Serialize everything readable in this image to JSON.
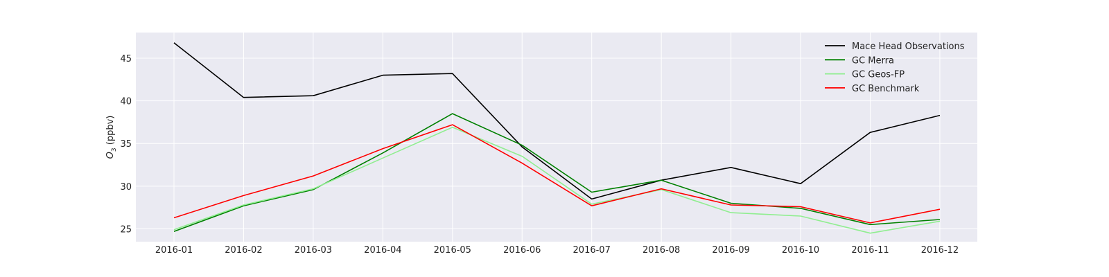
{
  "chart_data": {
    "type": "line",
    "title": "",
    "xlabel": "",
    "ylabel": {
      "symbol": "O",
      "subscript": "3",
      "unit": " (ppbv)"
    },
    "categories": [
      "2016-01",
      "2016-02",
      "2016-03",
      "2016-04",
      "2016-05",
      "2016-06",
      "2016-07",
      "2016-08",
      "2016-09",
      "2016-10",
      "2016-11",
      "2016-12"
    ],
    "ylim": [
      23.5,
      48
    ],
    "yticks": [
      25,
      30,
      35,
      40,
      45
    ],
    "grid": true,
    "legend_position": "top-right",
    "background": "#eaeaf2",
    "series": [
      {
        "name": "Mace Head Observations",
        "color": "#000000",
        "values": [
          46.8,
          40.4,
          40.6,
          43.0,
          43.2,
          34.6,
          28.5,
          30.7,
          32.2,
          30.3,
          36.3,
          38.3
        ]
      },
      {
        "name": "GC Merra",
        "color": "#008000",
        "values": [
          24.7,
          27.7,
          29.6,
          33.9,
          38.5,
          34.8,
          29.3,
          30.7,
          28.0,
          27.4,
          25.5,
          26.1
        ]
      },
      {
        "name": "GC Geos-FP",
        "color": "#90ee90",
        "values": [
          24.9,
          27.8,
          29.7,
          33.3,
          36.9,
          33.5,
          27.9,
          29.6,
          26.9,
          26.5,
          24.5,
          25.9
        ]
      },
      {
        "name": "GC Benchmark",
        "color": "#ff0000",
        "values": [
          26.3,
          28.9,
          31.2,
          34.4,
          37.2,
          32.7,
          27.7,
          29.7,
          27.8,
          27.6,
          25.7,
          27.3
        ]
      }
    ]
  }
}
